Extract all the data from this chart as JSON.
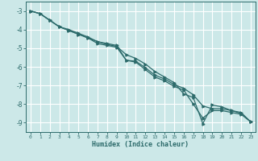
{
  "title": "",
  "xlabel": "Humidex (Indice chaleur)",
  "bg_color": "#cce8e8",
  "grid_color": "#ffffff",
  "line_color": "#2d6b6b",
  "xlim": [
    -0.5,
    23.5
  ],
  "ylim": [
    -9.5,
    -2.5
  ],
  "xticks": [
    0,
    1,
    2,
    3,
    4,
    5,
    6,
    7,
    8,
    9,
    10,
    11,
    12,
    13,
    14,
    15,
    16,
    17,
    18,
    19,
    20,
    21,
    22,
    23
  ],
  "yticks": [
    -3,
    -4,
    -5,
    -6,
    -7,
    -8,
    -9
  ],
  "line1_y": [
    -3.0,
    -3.15,
    -3.5,
    -3.85,
    -4.05,
    -4.25,
    -4.45,
    -4.65,
    -4.75,
    -4.85,
    -5.65,
    -5.7,
    -6.05,
    -6.45,
    -6.65,
    -6.95,
    -7.15,
    -7.5,
    -8.1,
    -8.25,
    -8.25,
    -8.35,
    -8.45,
    -8.95
  ],
  "line2_y": [
    -3.0,
    -3.15,
    -3.5,
    -3.85,
    -4.05,
    -4.25,
    -4.45,
    -4.75,
    -4.85,
    -4.95,
    -5.65,
    -5.75,
    -6.15,
    -6.55,
    -6.75,
    -7.05,
    -7.25,
    -8.0,
    -8.75,
    -8.35,
    -8.35,
    -8.45,
    -8.55,
    -8.95
  ],
  "line3_y": [
    -3.0,
    -3.15,
    -3.5,
    -3.85,
    -4.0,
    -4.2,
    -4.4,
    -4.65,
    -4.8,
    -4.9,
    -5.35,
    -5.55,
    -5.85,
    -6.25,
    -6.55,
    -6.85,
    -7.45,
    -7.65,
    -9.05,
    -8.05,
    -8.15,
    -8.35,
    -8.5,
    -8.95
  ]
}
